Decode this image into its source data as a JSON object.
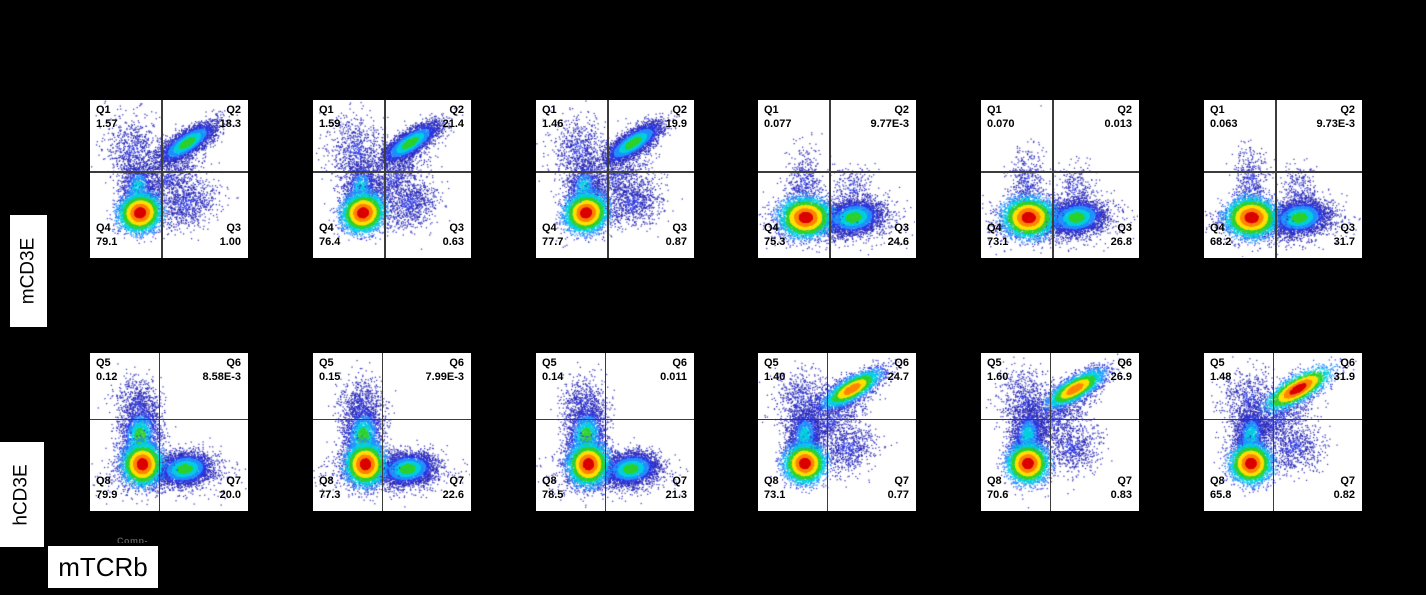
{
  "figure": {
    "background_color": "#000000",
    "plot_background": "#ffffff",
    "gate_line_color": "#3c3c3c",
    "row_labels": {
      "top": "mCD3E",
      "bottom": "hCD3E"
    },
    "x_axis_label": "mTCRb",
    "clipped_axis_text": "Comp-"
  },
  "chart_data": {
    "type": "scatter",
    "subtype": "flow-cytometry-density",
    "x_axis": "mTCRb",
    "row_y_axes": [
      "mCD3E",
      "hCD3E"
    ],
    "legend_position": "none",
    "grid": false,
    "layout": {
      "rows": 2,
      "cols": 6
    },
    "gates": {
      "row0": {
        "vx": 0.455,
        "hy": 0.455
      },
      "row1": {
        "vx": 0.44,
        "hy": 0.42
      }
    },
    "panels": [
      {
        "row": 0,
        "col": 0,
        "pattern": "A",
        "diag_peak": 3,
        "quadrants": {
          "tl": [
            "Q1",
            "1.57"
          ],
          "tr": [
            "Q2",
            "18.3"
          ],
          "bl": [
            "Q4",
            "79.1"
          ],
          "br": [
            "Q3",
            "1.00"
          ]
        }
      },
      {
        "row": 0,
        "col": 1,
        "pattern": "A",
        "diag_peak": 3,
        "quadrants": {
          "tl": [
            "Q1",
            "1.59"
          ],
          "tr": [
            "Q2",
            "21.4"
          ],
          "bl": [
            "Q4",
            "76.4"
          ],
          "br": [
            "Q3",
            "0.63"
          ]
        }
      },
      {
        "row": 0,
        "col": 2,
        "pattern": "A",
        "diag_peak": 3,
        "quadrants": {
          "tl": [
            "Q1",
            "1.46"
          ],
          "tr": [
            "Q2",
            "19.9"
          ],
          "bl": [
            "Q4",
            "77.7"
          ],
          "br": [
            "Q3",
            "0.87"
          ]
        }
      },
      {
        "row": 0,
        "col": 3,
        "pattern": "B",
        "diag_peak": 3,
        "quadrants": {
          "tl": [
            "Q1",
            "0.077"
          ],
          "tr": [
            "Q2",
            "9.77E-3"
          ],
          "bl": [
            "Q4",
            "75.3"
          ],
          "br": [
            "Q3",
            "24.6"
          ]
        }
      },
      {
        "row": 0,
        "col": 4,
        "pattern": "B",
        "diag_peak": 3,
        "quadrants": {
          "tl": [
            "Q1",
            "0.070"
          ],
          "tr": [
            "Q2",
            "0.013"
          ],
          "bl": [
            "Q4",
            "73.1"
          ],
          "br": [
            "Q3",
            "26.8"
          ]
        }
      },
      {
        "row": 0,
        "col": 5,
        "pattern": "B",
        "diag_peak": 3,
        "quadrants": {
          "tl": [
            "Q1",
            "0.063"
          ],
          "tr": [
            "Q2",
            "9.73E-3"
          ],
          "bl": [
            "Q4",
            "68.2"
          ],
          "br": [
            "Q3",
            "31.7"
          ]
        }
      },
      {
        "row": 1,
        "col": 0,
        "pattern": "C",
        "diag_peak": 3,
        "quadrants": {
          "tl": [
            "Q5",
            "0.12"
          ],
          "tr": [
            "Q6",
            "8.58E-3"
          ],
          "bl": [
            "Q8",
            "79.9"
          ],
          "br": [
            "Q7",
            "20.0"
          ]
        }
      },
      {
        "row": 1,
        "col": 1,
        "pattern": "C",
        "diag_peak": 3,
        "quadrants": {
          "tl": [
            "Q5",
            "0.15"
          ],
          "tr": [
            "Q6",
            "7.99E-3"
          ],
          "bl": [
            "Q8",
            "77.3"
          ],
          "br": [
            "Q7",
            "22.6"
          ]
        }
      },
      {
        "row": 1,
        "col": 2,
        "pattern": "C",
        "diag_peak": 3,
        "quadrants": {
          "tl": [
            "Q5",
            "0.14"
          ],
          "tr": [
            "Q6",
            "0.011"
          ],
          "bl": [
            "Q8",
            "78.5"
          ],
          "br": [
            "Q7",
            "21.3"
          ]
        }
      },
      {
        "row": 1,
        "col": 3,
        "pattern": "D",
        "diag_peak": 1,
        "quadrants": {
          "tl": [
            "Q5",
            "1.40"
          ],
          "tr": [
            "Q6",
            "24.7"
          ],
          "bl": [
            "Q8",
            "73.1"
          ],
          "br": [
            "Q7",
            "0.77"
          ]
        }
      },
      {
        "row": 1,
        "col": 4,
        "pattern": "D",
        "diag_peak": 1,
        "quadrants": {
          "tl": [
            "Q5",
            "1.60"
          ],
          "tr": [
            "Q6",
            "26.9"
          ],
          "bl": [
            "Q8",
            "70.6"
          ],
          "br": [
            "Q7",
            "0.83"
          ]
        }
      },
      {
        "row": 1,
        "col": 5,
        "pattern": "D",
        "diag_peak": 0,
        "quadrants": {
          "tl": [
            "Q5",
            "1.48"
          ],
          "tr": [
            "Q6",
            "31.9"
          ],
          "bl": [
            "Q8",
            "65.8"
          ],
          "br": [
            "Q7",
            "0.82"
          ]
        }
      }
    ],
    "density_palette": [
      "#dd0000",
      "#ff8800",
      "#ffe100",
      "#2fd32f",
      "#00cfe0",
      "#1f8fff",
      "#2a35dd",
      "#2626b8"
    ],
    "radius_thresholds": [
      0.55,
      0.95,
      1.35,
      1.75,
      2.2,
      2.8,
      3.6
    ],
    "cluster_patterns": {
      "A": [
        [
          0.27,
          0.32,
          0.09,
          0.11,
          0,
          700,
          6
        ],
        [
          0.5,
          0.5,
          0.14,
          0.05,
          -38,
          650,
          6
        ],
        [
          0.61,
          0.655,
          0.1,
          0.075,
          -25,
          850,
          6
        ],
        [
          0.3,
          0.56,
          0.055,
          0.095,
          8,
          1100,
          4
        ],
        [
          0.615,
          0.27,
          0.105,
          0.036,
          -33,
          3400,
          -1
        ],
        [
          0.315,
          0.715,
          0.062,
          0.056,
          -20,
          5200,
          0
        ]
      ],
      "B": [
        [
          0.295,
          0.52,
          0.055,
          0.11,
          0,
          450,
          6
        ],
        [
          0.6,
          0.56,
          0.06,
          0.08,
          0,
          260,
          6
        ],
        [
          0.45,
          0.775,
          0.22,
          0.07,
          0,
          900,
          6
        ],
        [
          0.605,
          0.745,
          0.088,
          0.052,
          -8,
          3400,
          3
        ],
        [
          0.3,
          0.745,
          0.075,
          0.058,
          0,
          5200,
          0
        ]
      ],
      "C": [
        [
          0.3,
          0.33,
          0.07,
          0.09,
          0,
          600,
          6
        ],
        [
          0.455,
          0.77,
          0.2,
          0.07,
          0,
          800,
          6
        ],
        [
          0.315,
          0.53,
          0.06,
          0.1,
          5,
          2100,
          3
        ],
        [
          0.6,
          0.735,
          0.085,
          0.05,
          -8,
          3300,
          3
        ],
        [
          0.33,
          0.705,
          0.058,
          0.062,
          0,
          4800,
          0
        ]
      ],
      "D": [
        [
          0.28,
          0.3,
          0.09,
          0.1,
          0,
          650,
          6
        ],
        [
          0.47,
          0.42,
          0.13,
          0.05,
          -35,
          600,
          6
        ],
        [
          0.57,
          0.6,
          0.09,
          0.08,
          -20,
          700,
          6
        ],
        [
          0.295,
          0.52,
          0.055,
          0.095,
          5,
          1700,
          4
        ],
        [
          0.595,
          0.225,
          0.105,
          0.035,
          -30,
          3400,
          -1
        ],
        [
          0.295,
          0.7,
          0.06,
          0.058,
          -10,
          4600,
          0
        ]
      ]
    }
  }
}
